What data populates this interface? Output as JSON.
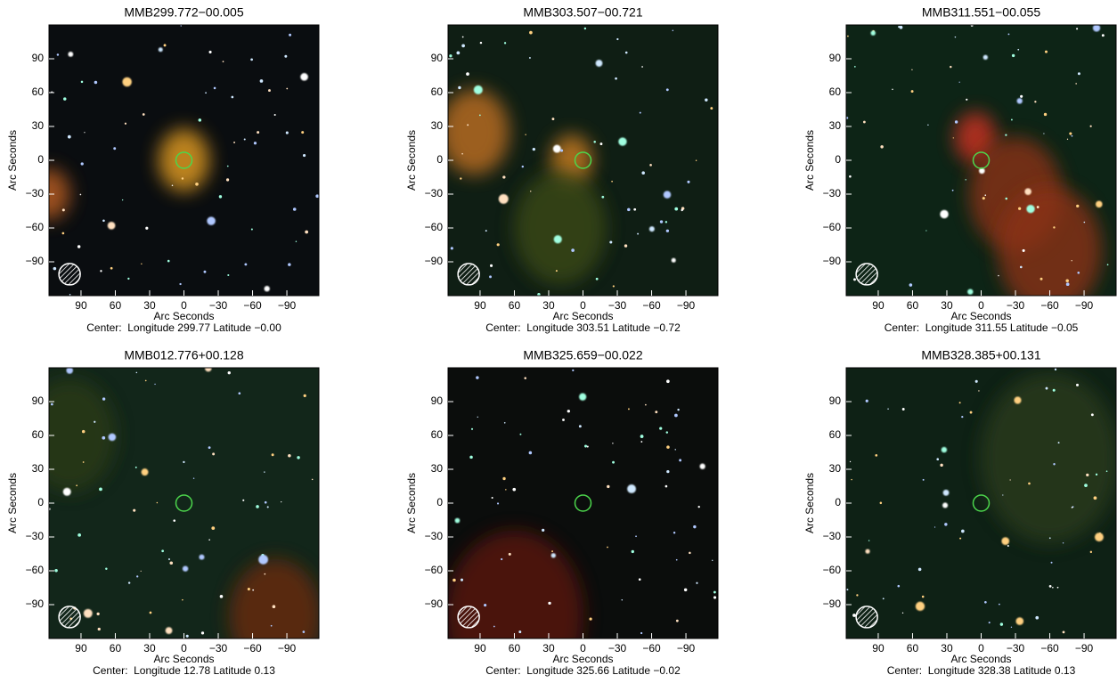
{
  "axes": {
    "xlabel": "Arc Seconds",
    "ylabel": "Arc Seconds",
    "xlim": [
      118,
      -118
    ],
    "ylim": [
      -120,
      120
    ],
    "xticks": [
      90,
      60,
      30,
      0,
      {
        "value": -30,
        "label": "−30"
      },
      {
        "value": -60,
        "label": "−60"
      },
      {
        "value": -90,
        "label": "−90"
      }
    ],
    "yticks": [
      90,
      60,
      30,
      0,
      {
        "value": -30,
        "label": "−30"
      },
      {
        "value": -60,
        "label": "−60"
      },
      {
        "value": -90,
        "label": "−90"
      }
    ]
  },
  "panels": [
    {
      "title": "MMB299.772−00.005",
      "caption": "Center:  Longitude 299.77 Latitude −0.00"
    },
    {
      "title": "MMB303.507−00.721",
      "caption": "Center:  Longitude 303.51 Latitude −0.72"
    },
    {
      "title": "MMB311.551−00.055",
      "caption": "Center:  Longitude 311.55 Latitude −0.05"
    },
    {
      "title": "MMB012.776+00.128",
      "caption": "Center:  Longitude 12.78 Latitude 0.13"
    },
    {
      "title": "MMB325.659−00.022",
      "caption": "Center:  Longitude 325.66 Latitude −0.02"
    },
    {
      "title": "MMB328.385+00.131",
      "caption": "Center:  Longitude 328.38 Latitude 0.13"
    }
  ]
}
